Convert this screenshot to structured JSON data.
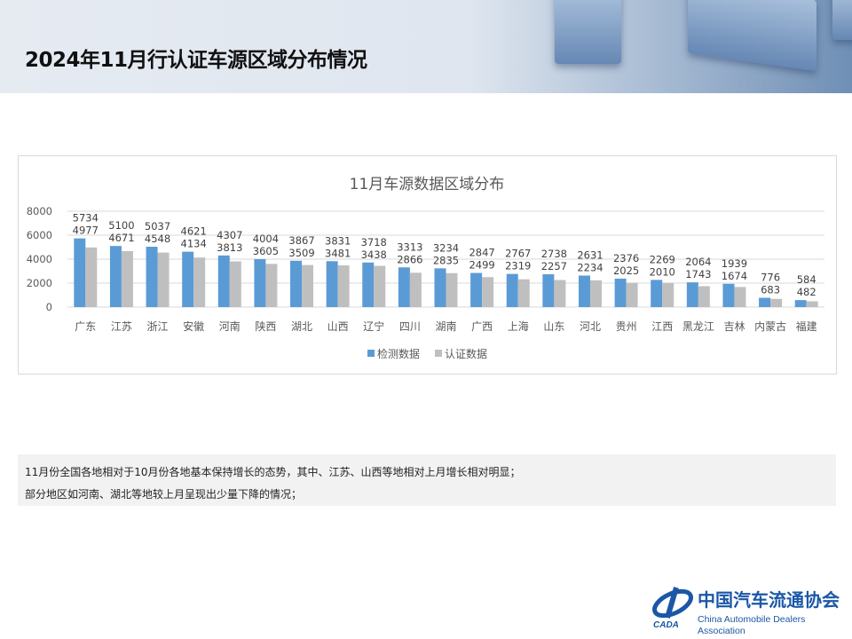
{
  "header": {
    "title": "2024年11月行认证车源区域分布情况"
  },
  "chart_data": {
    "type": "bar",
    "title": "11月车源数据区域分布",
    "categories": [
      "广东",
      "江苏",
      "浙江",
      "安徽",
      "河南",
      "陕西",
      "湖北",
      "山西",
      "辽宁",
      "四川",
      "湖南",
      "广西",
      "上海",
      "山东",
      "河北",
      "贵州",
      "江西",
      "黑龙江",
      "吉林",
      "内蒙古",
      "福建"
    ],
    "series": [
      {
        "name": "检测数据",
        "color": "#5b9bd5",
        "values": [
          5734,
          5100,
          5037,
          4621,
          4307,
          4004,
          3867,
          3831,
          3718,
          3313,
          3234,
          2847,
          2767,
          2738,
          2631,
          2376,
          2269,
          2064,
          1939,
          776,
          584
        ]
      },
      {
        "name": "认证数据",
        "color": "#bfbfbf",
        "values": [
          4977,
          4671,
          4548,
          4134,
          3813,
          3605,
          3509,
          3481,
          3438,
          2866,
          2835,
          2499,
          2319,
          2257,
          2234,
          2025,
          2010,
          1743,
          1674,
          683,
          482
        ]
      }
    ],
    "yticks": [
      0,
      2000,
      4000,
      6000,
      8000
    ],
    "ylim": [
      0,
      8000
    ],
    "grid": true,
    "legend": "bottom"
  },
  "note": {
    "lines": [
      "11月份全国各地相对于10月份各地基本保持增长的态势，其中、江苏、山西等地相对上月增长相对明显；",
      "部分地区如河南、湖北等地较上月呈现出少量下降的情况；"
    ]
  },
  "logo": {
    "cn": "中国汽车流通协会",
    "en": "China Automobile Dealers Association",
    "mark": "CADA"
  }
}
